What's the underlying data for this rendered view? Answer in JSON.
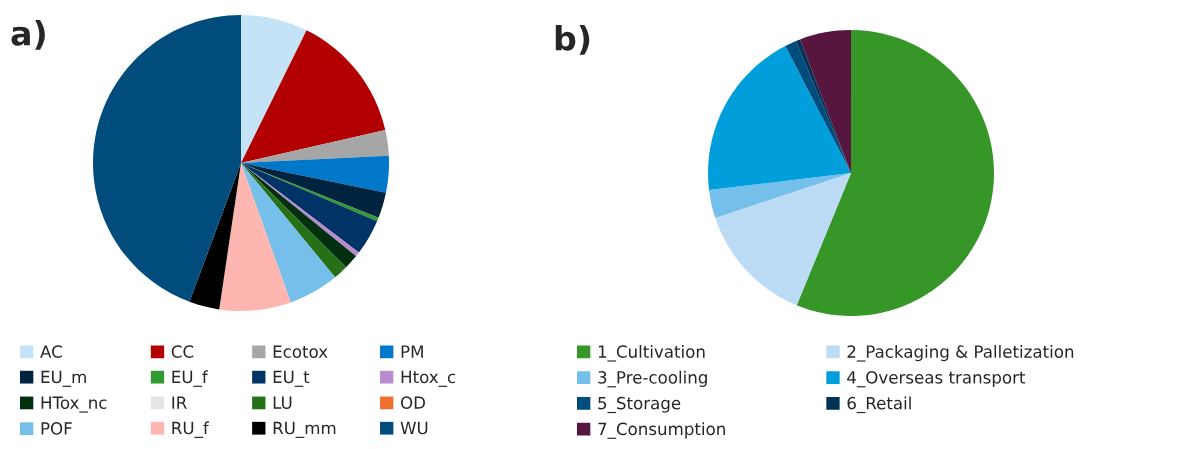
{
  "chart_data": [
    {
      "type": "pie",
      "title": "a)",
      "legend": "bottom",
      "categories": [
        "AC",
        "CC",
        "Ecotox",
        "PM",
        "EU_m",
        "EU_f",
        "EU_t",
        "Htox_c",
        "HTox_nc",
        "IR",
        "LU",
        "OD",
        "POF",
        "RU_f",
        "RU_mm",
        "WU"
      ],
      "values": [
        7.3,
        14.1,
        2.8,
        4.0,
        2.8,
        0.4,
        3.9,
        0.5,
        1.6,
        null,
        1.6,
        0,
        5.5,
        7.8,
        3.3,
        44.3
      ],
      "colors": [
        "#c5e3f7",
        "#b20000",
        "#a6a6a6",
        "#0077c8",
        "#002340",
        "#339933",
        "#003366",
        "#b88ccf",
        "#003010",
        "#e5e5e5",
        "#267018",
        "#f07030",
        "#75bfea",
        "#ffb5b0",
        "#000000",
        "#004c7d"
      ]
    },
    {
      "type": "pie",
      "title": "b)",
      "legend": "bottom",
      "categories": [
        "1_Cultivation",
        "2_Packaging & Palletization",
        "3_Pre-cooling",
        "4_Overseas transport",
        "5_Storage",
        "6_Retail",
        "7_Consumption"
      ],
      "values": [
        56.2,
        13.7,
        3.2,
        19.3,
        1.3,
        0.5,
        5.8
      ],
      "colors": [
        "#369628",
        "#bcdcf5",
        "#75c0ea",
        "#009fdc",
        "#004c7d",
        "#003355",
        "#561640"
      ]
    }
  ]
}
